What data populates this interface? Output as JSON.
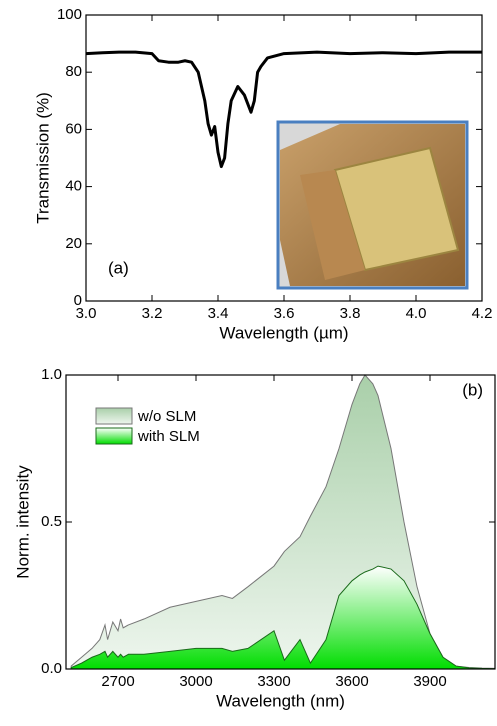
{
  "chart_data": [
    {
      "type": "line",
      "annotation": "(a)",
      "x_label": "Wavelength (µm)",
      "y_label": "Transmission (%)",
      "color": "#000000",
      "x": [
        3.0,
        3.05,
        3.1,
        3.15,
        3.2,
        3.22,
        3.25,
        3.28,
        3.3,
        3.32,
        3.34,
        3.36,
        3.37,
        3.38,
        3.39,
        3.4,
        3.41,
        3.42,
        3.43,
        3.44,
        3.46,
        3.48,
        3.5,
        3.51,
        3.52,
        3.53,
        3.55,
        3.6,
        3.7,
        3.8,
        3.9,
        4.0,
        4.1,
        4.2
      ],
      "values": [
        86.5,
        86.8,
        87,
        87,
        86.5,
        84,
        83.5,
        83.5,
        84,
        83.5,
        80,
        70,
        62,
        58,
        61,
        52,
        47,
        50,
        62,
        70,
        75,
        72,
        66,
        70,
        80,
        82,
        85,
        86.5,
        87,
        86.5,
        86.8,
        86.5,
        87,
        87
      ],
      "xlim": [
        3.0,
        4.2
      ],
      "ylim": [
        0,
        100
      ],
      "xticks": [
        {
          "value": 3.0,
          "label": "3.0"
        },
        3.2,
        3.4,
        3.6,
        3.8,
        {
          "value": 4.0,
          "label": "4.0"
        },
        4.2
      ],
      "yticks": [
        0,
        20,
        40,
        60,
        80,
        100
      ]
    },
    {
      "type": "area",
      "annotation": "(b)",
      "x_label": "Wavelength (nm)",
      "y_label": "Norm. intensity",
      "x": [
        2520,
        2560,
        2600,
        2630,
        2650,
        2660,
        2680,
        2700,
        2710,
        2720,
        2740,
        2800,
        2900,
        3000,
        3100,
        3140,
        3200,
        3300,
        3340,
        3400,
        3440,
        3500,
        3550,
        3600,
        3630,
        3650,
        3680,
        3700,
        3750,
        3800,
        3850,
        3900,
        3950,
        4000,
        4050,
        4100,
        4150
      ],
      "series": [
        {
          "name": "w/o SLM",
          "color": "#a9cfa9",
          "values": [
            0.01,
            0.04,
            0.07,
            0.1,
            0.15,
            0.1,
            0.16,
            0.13,
            0.17,
            0.14,
            0.15,
            0.17,
            0.21,
            0.23,
            0.25,
            0.24,
            0.28,
            0.35,
            0.4,
            0.45,
            0.52,
            0.62,
            0.75,
            0.9,
            0.97,
            1.0,
            0.97,
            0.93,
            0.75,
            0.5,
            0.28,
            0.12,
            0.04,
            0.01,
            0.005,
            0.003,
            0.002
          ]
        },
        {
          "name": "with SLM",
          "color": "#00dd00",
          "values": [
            0.005,
            0.02,
            0.04,
            0.05,
            0.06,
            0.04,
            0.06,
            0.04,
            0.05,
            0.04,
            0.05,
            0.05,
            0.06,
            0.07,
            0.07,
            0.06,
            0.07,
            0.13,
            0.03,
            0.1,
            0.02,
            0.1,
            0.25,
            0.3,
            0.32,
            0.33,
            0.34,
            0.35,
            0.34,
            0.3,
            0.22,
            0.12,
            0.04,
            0.01,
            0.004,
            0.002,
            0.001
          ]
        }
      ],
      "xlim": [
        2500,
        4150
      ],
      "ylim": [
        0,
        1.0
      ],
      "xticks": [
        2700,
        3000,
        3300,
        3600,
        3900
      ],
      "yticks": [
        {
          "value": 0,
          "label": "0.0"
        },
        0.5,
        {
          "value": 1.0,
          "label": "1.0"
        }
      ]
    }
  ]
}
